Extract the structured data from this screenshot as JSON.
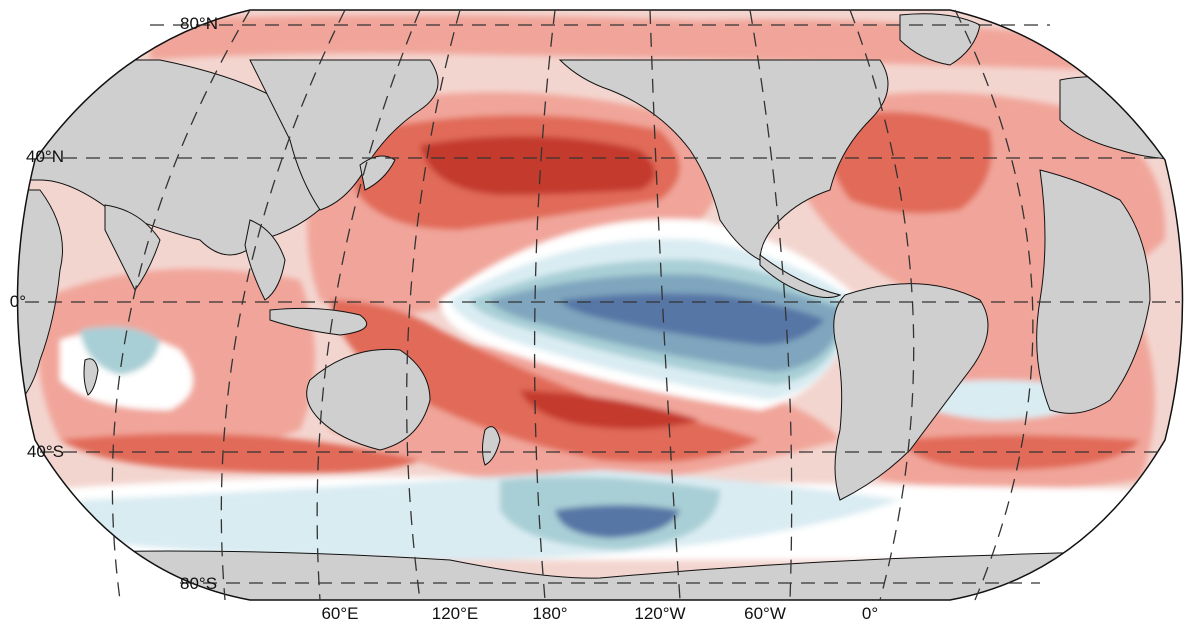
{
  "figure": {
    "projection": "Robinson",
    "central_meridian": "Pacific (≈150°W)",
    "grid": "dashed graticule",
    "colors": {
      "ocean_background": "#f3d5cf",
      "land": "#cfcfcf",
      "warm_1": "#f1a59a",
      "warm_2": "#e16b59",
      "warm_3": "#c43a2e",
      "cool_1": "#d9ecf2",
      "cool_2": "#a9cfd6",
      "cool_3": "#7fa6be",
      "cool_4": "#5676a6",
      "neutral": "#ffffff",
      "graticule": "#333333",
      "coastline": "#111111"
    }
  },
  "lat_labels": [
    "80°N",
    "40°N",
    "0°",
    "40°S",
    "80°S"
  ],
  "lon_labels": [
    "60°E",
    "120°E",
    "180°",
    "120°W",
    "60°W",
    "0°"
  ]
}
